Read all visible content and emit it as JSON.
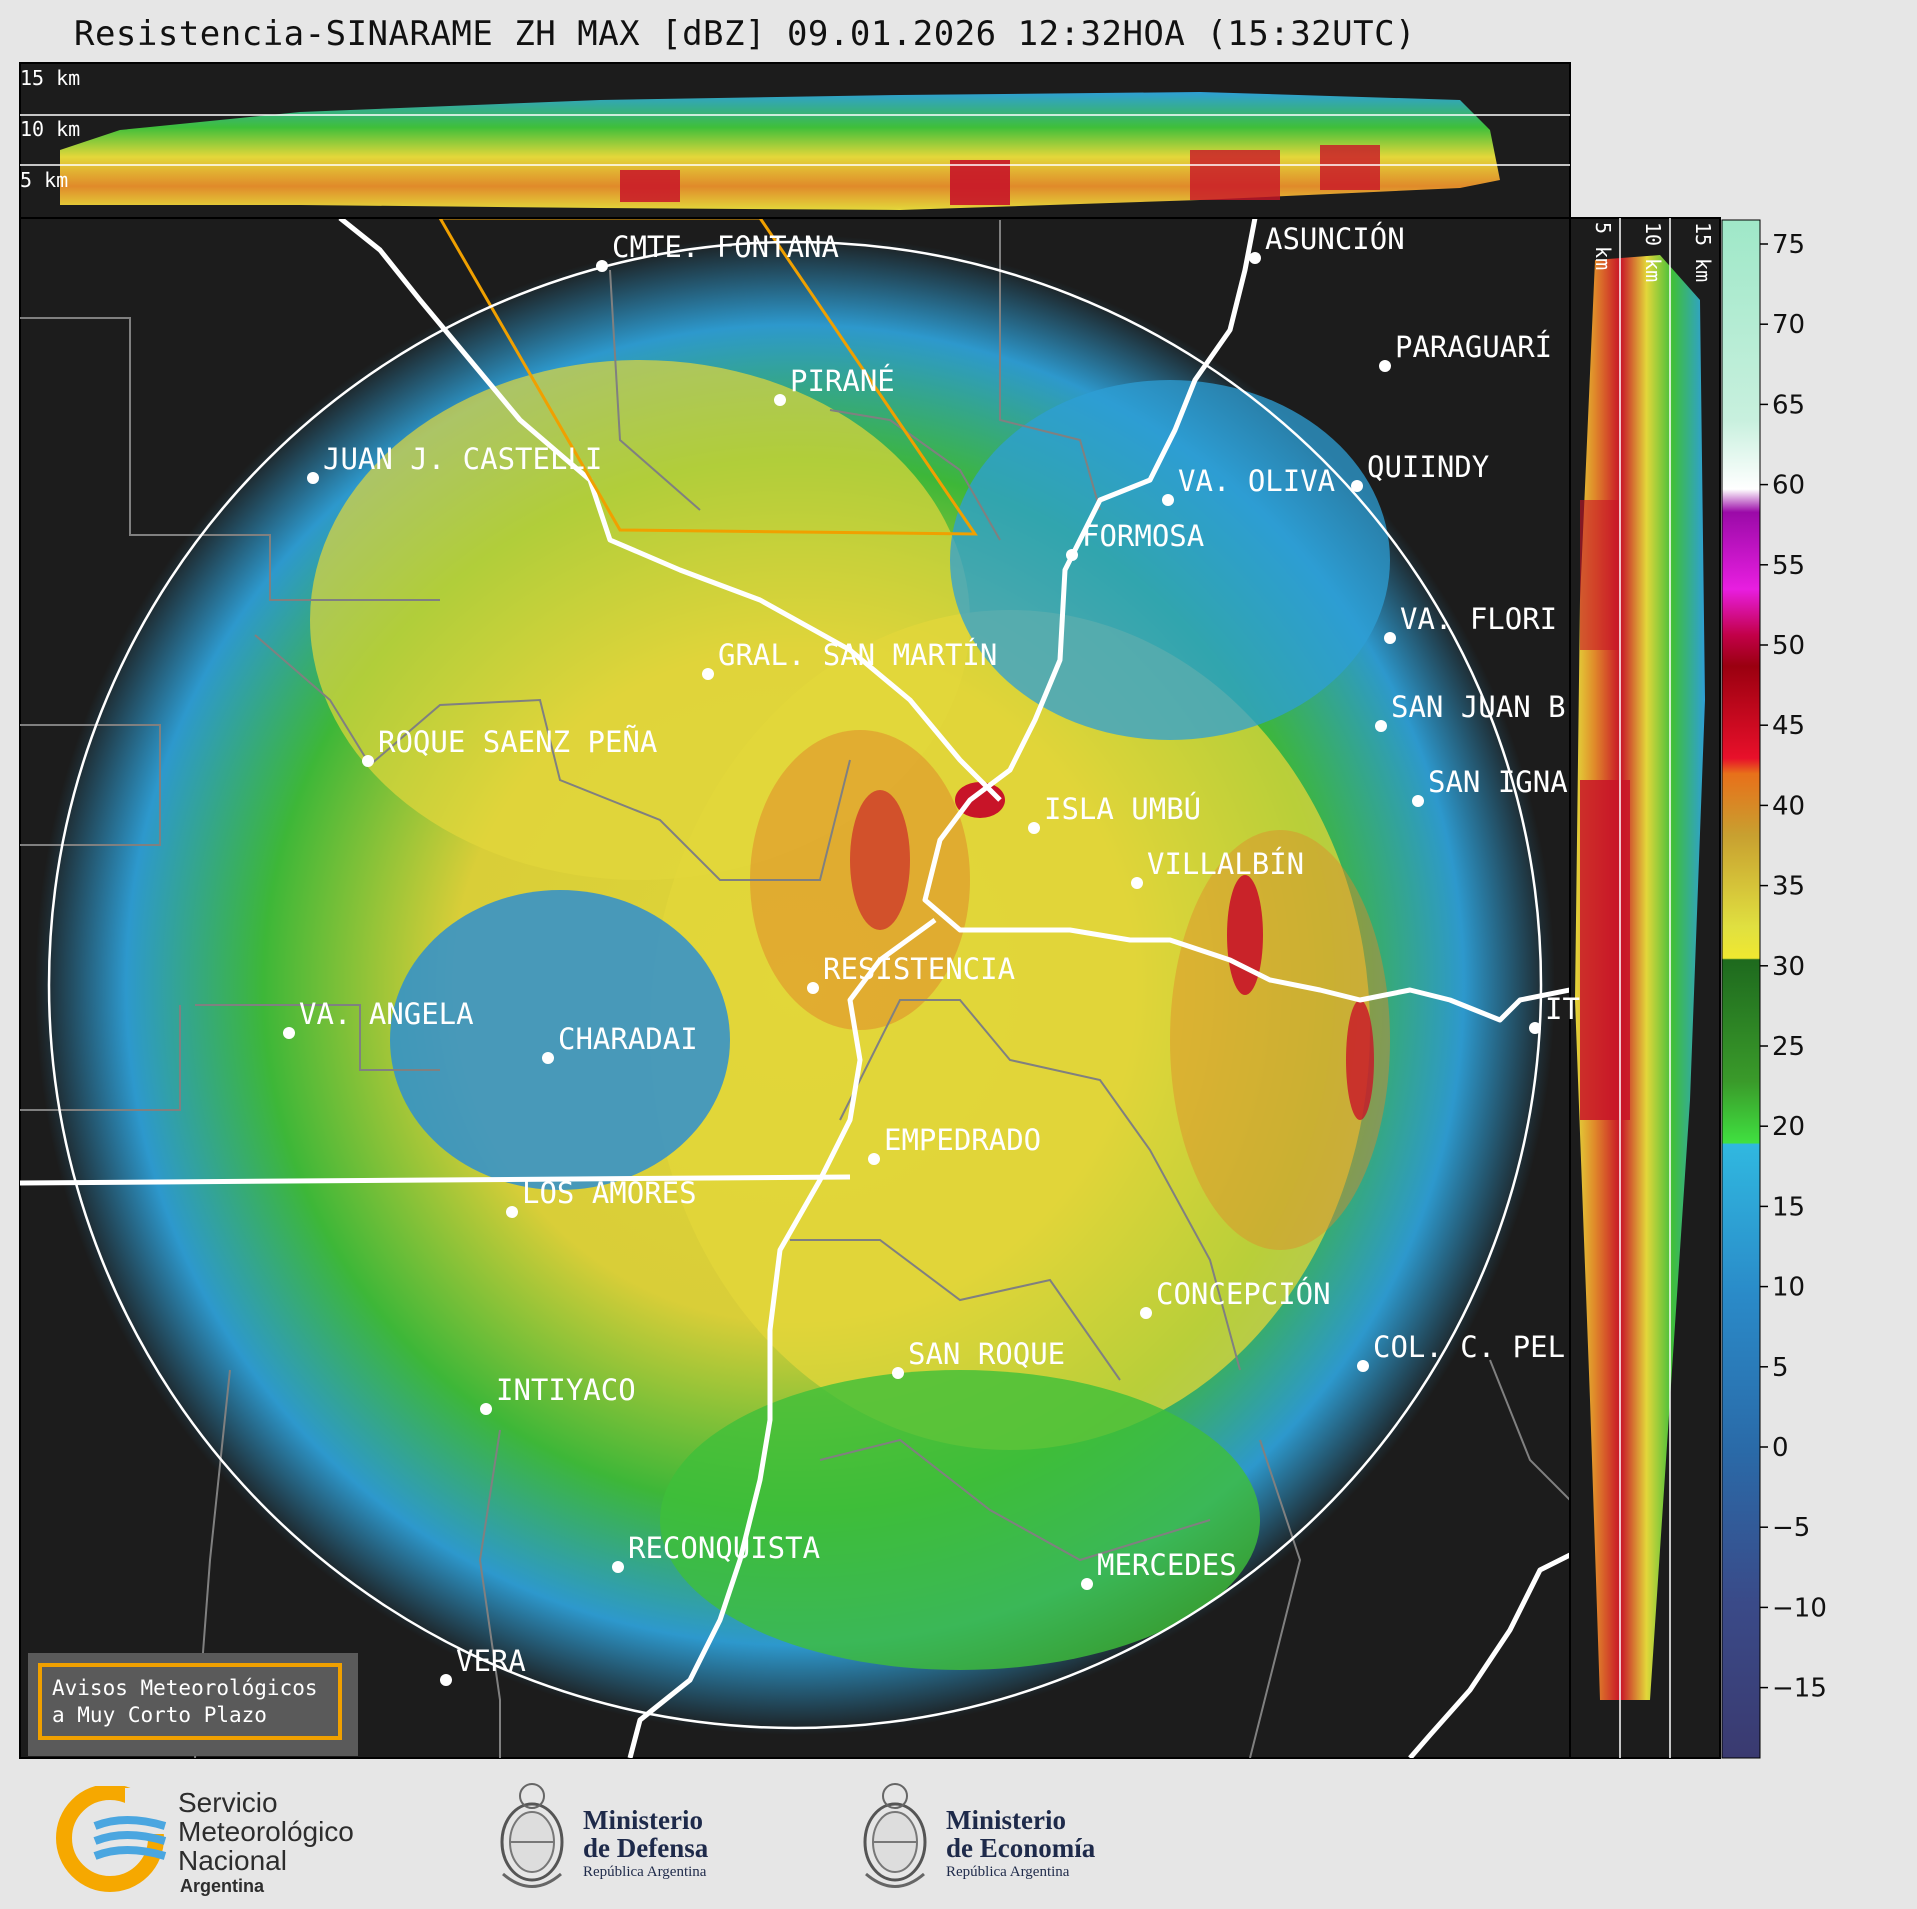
{
  "title": "Resistencia-SINARAME ZH MAX [dBZ] 09.01.2026 12:32HOA (15:32UTC)",
  "top_profile": {
    "height_labels": [
      "15 km",
      "10 km",
      "5 km"
    ]
  },
  "side_profile": {
    "height_labels": [
      "5 km",
      "10 km",
      "15 km"
    ]
  },
  "colorbar": {
    "unit": "dBZ",
    "ticks": [
      "75",
      "70",
      "65",
      "60",
      "55",
      "50",
      "45",
      "40",
      "35",
      "30",
      "25",
      "20",
      "15",
      "10",
      "5",
      "0",
      "−5",
      "−10",
      "−15"
    ]
  },
  "cities": [
    {
      "name": "CMTE. FONTANA"
    },
    {
      "name": "ASUNCIÓN"
    },
    {
      "name": "PARAGUARÍ"
    },
    {
      "name": "PIRANÉ"
    },
    {
      "name": "JUAN J. CASTELLI"
    },
    {
      "name": "VA. OLIVA"
    },
    {
      "name": "QUIINDY"
    },
    {
      "name": "FORMOSA"
    },
    {
      "name": "VA. FLORI"
    },
    {
      "name": "GRAL. SAN MARTÍN"
    },
    {
      "name": "SAN JUAN B"
    },
    {
      "name": "ROQUE SAENZ PEÑA"
    },
    {
      "name": "SAN IGNA"
    },
    {
      "name": "ISLA UMBÚ"
    },
    {
      "name": "VILLALBÍN"
    },
    {
      "name": "RESISTENCIA"
    },
    {
      "name": "VA. ANGELA"
    },
    {
      "name": "CHARADAI"
    },
    {
      "name": "IT"
    },
    {
      "name": "EMPEDRADO"
    },
    {
      "name": "LOS AMORES"
    },
    {
      "name": "CONCEPCIÓN"
    },
    {
      "name": "SAN ROQUE"
    },
    {
      "name": "COL. C. PEL"
    },
    {
      "name": "INTIYACO"
    },
    {
      "name": "RECONQUISTA"
    },
    {
      "name": "MERCEDES"
    },
    {
      "name": "VERA"
    }
  ],
  "warning_box": {
    "line1": "Avisos Meteorológicos",
    "line2": "a Muy Corto Plazo"
  },
  "footer": {
    "smn": {
      "line1": "Servicio",
      "line2": "Meteorológico",
      "line3": "Nacional",
      "country": "Argentina"
    },
    "defensa": {
      "line1": "Ministerio",
      "line2": "de Defensa",
      "line3": "República Argentina"
    },
    "economia": {
      "line1": "Ministerio",
      "line2": "de Economía",
      "line3": "República Argentina"
    }
  },
  "colors": {
    "background": "#1c1c1c",
    "range_ring": "#ffffff",
    "warning_polygon": "#f0a000",
    "borders": "#808080",
    "rivers": "#ffffff"
  }
}
